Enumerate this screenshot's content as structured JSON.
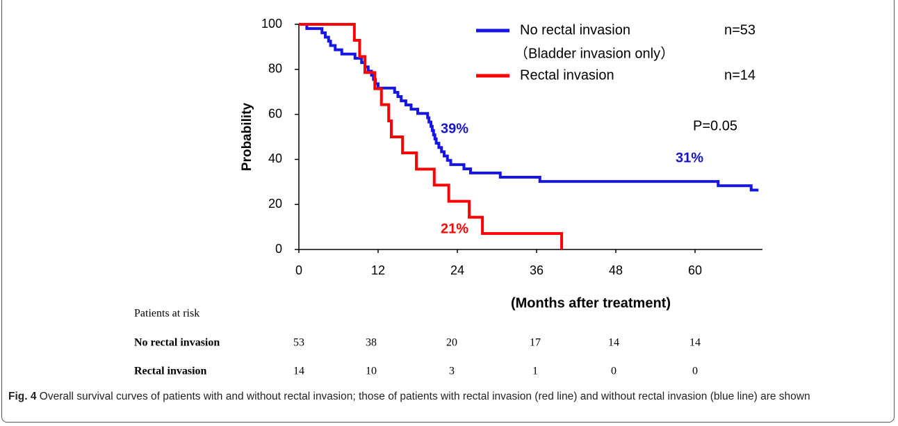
{
  "chart_data": {
    "type": "step",
    "y_label": "Probability",
    "x_label": "(Months after treatment)",
    "xlim": [
      0,
      70
    ],
    "xticks": [
      0,
      12,
      24,
      36,
      48,
      60
    ],
    "ylim": [
      0,
      100
    ],
    "yticks": [
      0,
      20,
      40,
      60,
      80,
      100
    ],
    "series": [
      {
        "name": "No rectal invasion",
        "note": "（Bladder invasion only）",
        "n_label": "n=53",
        "color": "#1515e8",
        "x": [
          0,
          1.2,
          3.5,
          4,
          4.5,
          4.8,
          5.5,
          6.5,
          8.5,
          9.5,
          10,
          10.5,
          11,
          11.3,
          11.6,
          12,
          14.5,
          15,
          15.5,
          16.2,
          17,
          18,
          19.5,
          19.7,
          20,
          20.2,
          20.4,
          20.6,
          20.8,
          21.2,
          21.6,
          22,
          22.5,
          23,
          25,
          26,
          30.5,
          36.5,
          63.5,
          68.5,
          69.6
        ],
        "values": [
          100,
          98.1,
          96.2,
          94.3,
          92.5,
          90.6,
          88.7,
          86.8,
          84.9,
          83,
          81.1,
          79.2,
          77.4,
          75.5,
          73.6,
          71.7,
          69.8,
          67.9,
          66,
          64.2,
          62.3,
          60.4,
          58.5,
          56.6,
          54.7,
          52.8,
          50.9,
          49.1,
          47.2,
          45.3,
          43.4,
          41.5,
          39.6,
          37.7,
          35.8,
          34,
          32.1,
          30.2,
          28.3,
          26.4,
          26.4
        ]
      },
      {
        "name": "Rectal invasion",
        "n_label": "n=14",
        "color": "#ff0000",
        "x": [
          0,
          8.4,
          9.2,
          10,
          11.5,
          12.5,
          13.6,
          14,
          15.7,
          17.8,
          20.5,
          22.7,
          25.8,
          27.8,
          39.8
        ],
        "values": [
          100,
          92.9,
          85.7,
          78.6,
          71.4,
          64.3,
          57.1,
          50,
          42.9,
          35.7,
          28.6,
          21.4,
          14.3,
          7.1,
          0
        ]
      }
    ],
    "annotations": [
      {
        "text": "39%",
        "color": "#1515c8"
      },
      {
        "text": "31%",
        "color": "#1515c8"
      },
      {
        "text": "21%",
        "color": "#ff0000"
      },
      {
        "text": "P=0.05",
        "color": "#000000"
      }
    ]
  },
  "risk_table": {
    "title": "Patients at risk",
    "rows": [
      {
        "label": "No rectal invasion",
        "counts": [
          "53",
          "38",
          "20",
          "17",
          "14",
          "14"
        ]
      },
      {
        "label": "Rectal invasion",
        "counts": [
          "14",
          "10",
          "3",
          "1",
          "0",
          "0"
        ]
      }
    ]
  },
  "caption": {
    "label": "Fig. 4",
    "text": "Overall survival curves of patients with and without rectal invasion; those of patients with rectal invasion (red line) and without rectal invasion (blue line) are shown"
  }
}
